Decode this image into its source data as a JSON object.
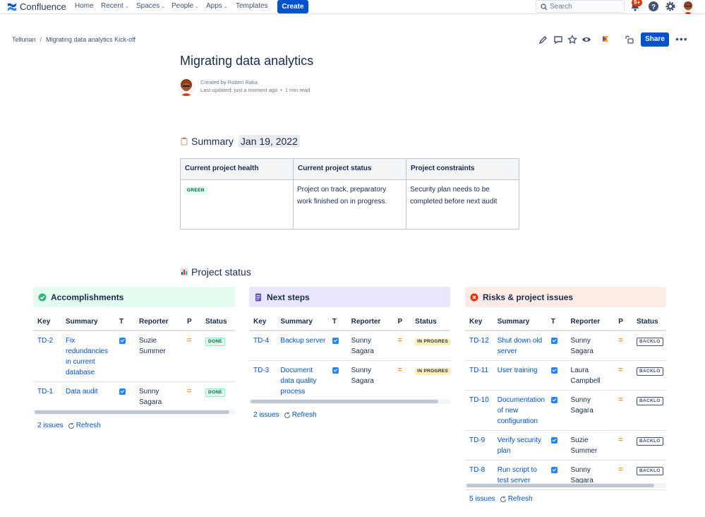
{
  "nav": {
    "brand": "Confluence",
    "home": "Home",
    "recent": "Recent",
    "spaces": "Spaces",
    "people": "People",
    "apps": "Apps",
    "templates": "Templates",
    "create": "Create",
    "search_placeholder": "Search",
    "notif_badge": "9+"
  },
  "breadcrumb": {
    "space": "Tellurian",
    "page": "Migrating data analytics Kick-off"
  },
  "share": "Share",
  "page": {
    "title": "Migrating data analytics",
    "created_by": "Created by Robert Raka",
    "last_updated": "Last updated: just a moment ago",
    "read_time": "1 min read"
  },
  "summary": {
    "heading": "Summary",
    "date": "Jan 19, 2022",
    "headers": [
      "Current project health",
      "Current project status",
      "Project constraints"
    ],
    "health": "GREEN",
    "status": "Project on track, preparatory work finished on in progress.",
    "constraints": "Security plan needs to be completed before next audit"
  },
  "project_status": {
    "heading": "Project status"
  },
  "columns": [
    "Key",
    "Summary",
    "T",
    "Reporter",
    "P",
    "Status"
  ],
  "accomplishments": {
    "title": "Accomplishments",
    "rows": [
      {
        "key": "TD-2",
        "summary": "Fix redundancies in current database",
        "reporter": "Suzie Summer",
        "status": "DONE"
      },
      {
        "key": "TD-1",
        "summary": "Data audit",
        "reporter": "Sunny Sagara",
        "status": "DONE"
      }
    ],
    "count": "2 issues",
    "refresh": "Refresh"
  },
  "next_steps": {
    "title": "Next steps",
    "rows": [
      {
        "key": "TD-4",
        "summary": "Backup server",
        "reporter": "Sunny Sagara",
        "status": "IN PROGRES"
      },
      {
        "key": "TD-3",
        "summary": "Document data quality process",
        "reporter": "Sunny Sagara",
        "status": "IN PROGRES"
      }
    ],
    "count": "2 issues",
    "refresh": "Refresh"
  },
  "risks": {
    "title": "Risks & project issues",
    "rows": [
      {
        "key": "TD-12",
        "summary": "Shut down old server",
        "reporter": "Sunny Sagara",
        "status": "BACKLO"
      },
      {
        "key": "TD-11",
        "summary": "User training",
        "reporter": "Laura Campbell",
        "status": "BACKLO"
      },
      {
        "key": "TD-10",
        "summary": "Documentation of new configuration",
        "reporter": "Sunny Sagara",
        "status": "BACKLO"
      },
      {
        "key": "TD-9",
        "summary": "Verify security plan",
        "reporter": "Suzie Summer",
        "status": "BACKLO"
      },
      {
        "key": "TD-8",
        "summary": "Run script to test server",
        "reporter": "Sunny Sagara",
        "status": "BACKLO"
      }
    ],
    "count": "5 issues",
    "refresh": "Refresh"
  },
  "priority_symbol": "=",
  "colors": {
    "accent": "#0052cc",
    "accomplishments_bg": "#e3fcef",
    "next_steps_bg": "#eae6ff",
    "risks_bg": "#ffebe6"
  }
}
